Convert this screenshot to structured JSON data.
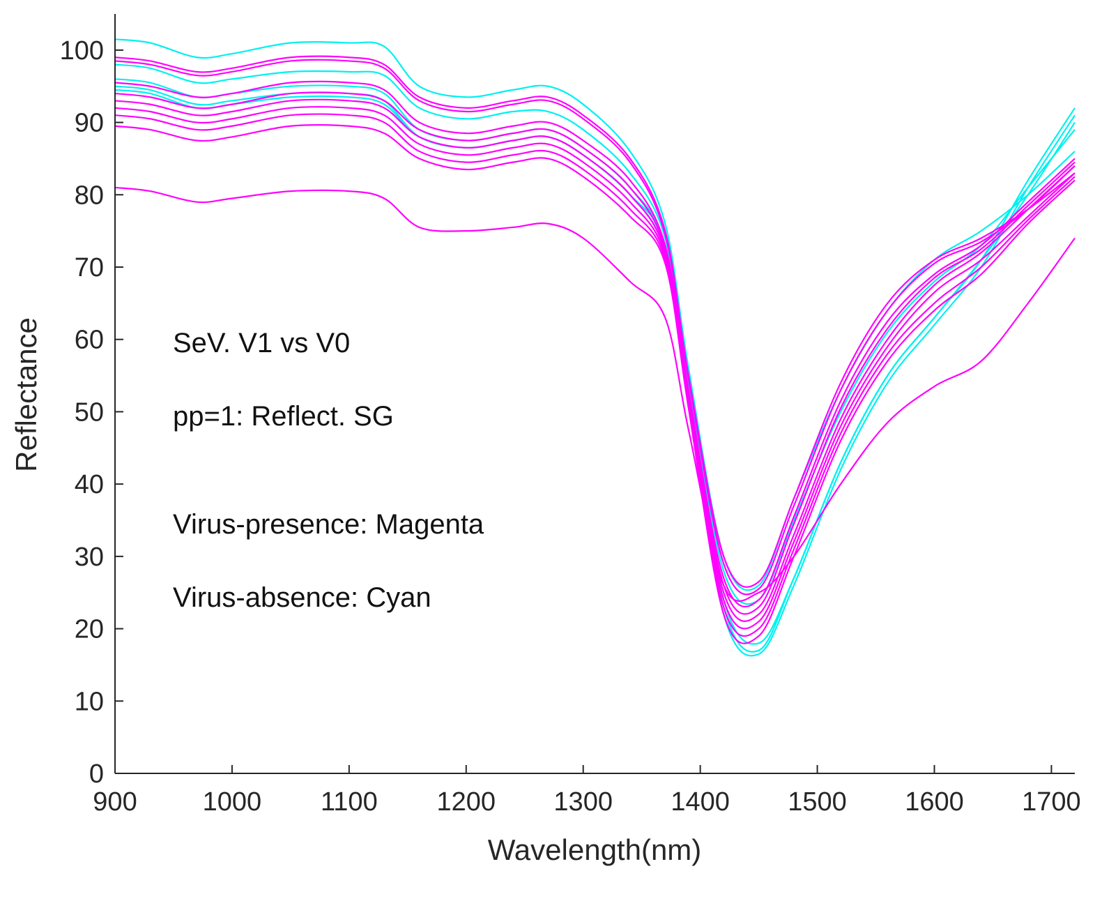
{
  "chart_data": {
    "type": "line",
    "title": "",
    "xlabel": "Wavelength(nm)",
    "ylabel": "Reflectance",
    "xlim": [
      900,
      1720
    ],
    "ylim": [
      0,
      105
    ],
    "xticks": [
      900,
      1000,
      1100,
      1200,
      1300,
      1400,
      1500,
      1600,
      1700
    ],
    "yticks": [
      0,
      10,
      20,
      30,
      40,
      50,
      60,
      70,
      80,
      90,
      100
    ],
    "grid": false,
    "colors": {
      "magenta": "#ff00ff",
      "cyan": "#00f0f0",
      "axis": "#262626"
    },
    "annotations": [
      "SeV. V1 vs V0",
      "pp=1: Reflect. SG",
      "Virus-presence: Magenta",
      "Virus-absence:  Cyan"
    ],
    "x": [
      900,
      930,
      970,
      1000,
      1050,
      1100,
      1130,
      1160,
      1200,
      1240,
      1270,
      1300,
      1340,
      1370,
      1390,
      1420,
      1450,
      1480,
      1520,
      1560,
      1600,
      1640,
      1680,
      1720
    ],
    "series": [
      {
        "name": "Virus-absence 1",
        "color": "cyan",
        "values": [
          101.5,
          101,
          99,
          99.5,
          101,
          101,
          100.5,
          95,
          93.5,
          94.5,
          95,
          92.5,
          86,
          76,
          56,
          30,
          26,
          38,
          53,
          64,
          71,
          75,
          80,
          86
        ]
      },
      {
        "name": "Virus-absence 2",
        "color": "cyan",
        "values": [
          98,
          97.5,
          95.5,
          96,
          97,
          97,
          96.5,
          92,
          90.5,
          91.5,
          91.5,
          89,
          83,
          74,
          54,
          28,
          24,
          35,
          50,
          61,
          68,
          73,
          81,
          89
        ]
      },
      {
        "name": "Virus-absence 3",
        "color": "cyan",
        "values": [
          96,
          95.5,
          93.5,
          94,
          95,
          95,
          94,
          89,
          87.5,
          88.5,
          89,
          86.5,
          81,
          73,
          52,
          24,
          18,
          27,
          43,
          55,
          63,
          71,
          80,
          90
        ]
      },
      {
        "name": "Virus-absence 4",
        "color": "cyan",
        "values": [
          95,
          94.5,
          92.5,
          93,
          94,
          94,
          93,
          88,
          86.5,
          87.5,
          88,
          85.5,
          80,
          72,
          51,
          22,
          16.5,
          26,
          42,
          54,
          62,
          70,
          81,
          91
        ]
      },
      {
        "name": "Virus-absence 5",
        "color": "cyan",
        "values": [
          94.5,
          94,
          92,
          92.5,
          93.5,
          93.5,
          92.5,
          88,
          86.5,
          87.5,
          88,
          85.5,
          80,
          73,
          52,
          23,
          17,
          27,
          43,
          55,
          63,
          71,
          82,
          92
        ]
      },
      {
        "name": "Virus-presence 1",
        "color": "magenta",
        "values": [
          99,
          98.5,
          97,
          97.5,
          99,
          99,
          98,
          93.5,
          92,
          93,
          93.5,
          91,
          85,
          75,
          55,
          30,
          26.5,
          38,
          54,
          65,
          71,
          74,
          78,
          83
        ]
      },
      {
        "name": "Virus-presence 2",
        "color": "magenta",
        "values": [
          98.5,
          98,
          96.5,
          97,
          98.5,
          98.5,
          97.5,
          93,
          91.5,
          92.5,
          93,
          90.5,
          84.5,
          74.5,
          54.5,
          29,
          25.5,
          37,
          53,
          64,
          70.5,
          73.5,
          78,
          84
        ]
      },
      {
        "name": "Virus-presence 3",
        "color": "magenta",
        "values": [
          95.5,
          95,
          93.5,
          94,
          95.5,
          95.5,
          94.5,
          90,
          88.5,
          89.5,
          90,
          87.5,
          82,
          73,
          53,
          27,
          24,
          35.5,
          51.5,
          62.5,
          69,
          73,
          79,
          85
        ]
      },
      {
        "name": "Virus-presence 4",
        "color": "magenta",
        "values": [
          94,
          93.5,
          92,
          92.5,
          94,
          94,
          93,
          89,
          87.5,
          88.5,
          89,
          86.5,
          81,
          72.5,
          52.5,
          26,
          23,
          34.5,
          50.5,
          61.5,
          68.5,
          72.5,
          78.5,
          84.5
        ]
      },
      {
        "name": "Virus-presence 5",
        "color": "magenta",
        "values": [
          93,
          92.5,
          91,
          91.5,
          93,
          93,
          92,
          88,
          86.5,
          87.5,
          88,
          85.5,
          80,
          72,
          52,
          25,
          22,
          33,
          49,
          60,
          67.5,
          72,
          78,
          84
        ]
      },
      {
        "name": "Virus-presence 6",
        "color": "magenta",
        "values": [
          92,
          91.5,
          90,
          90.5,
          92,
          92,
          91,
          87,
          85.5,
          86.5,
          87,
          84.5,
          79,
          71.5,
          51.5,
          24,
          21,
          32,
          48,
          59,
          66.5,
          71,
          77,
          83
        ]
      },
      {
        "name": "Virus-presence 7",
        "color": "magenta",
        "values": [
          91,
          90.5,
          89,
          89.5,
          91,
          91,
          90,
          86,
          84.5,
          85.5,
          86,
          83.5,
          78,
          71,
          51,
          23,
          20,
          31,
          47,
          58,
          65,
          70,
          76.5,
          82.5
        ]
      },
      {
        "name": "Virus-presence 8",
        "color": "magenta",
        "values": [
          89.5,
          89,
          87.5,
          88,
          89.5,
          89.5,
          88.5,
          85,
          83.5,
          84.5,
          85,
          82.5,
          77,
          70.5,
          50.5,
          22,
          19,
          30,
          46,
          57,
          64,
          69,
          76,
          82
        ]
      },
      {
        "name": "Virus-presence 9",
        "color": "magenta",
        "values": [
          81,
          80.5,
          79,
          79.5,
          80.5,
          80.5,
          79.5,
          75.5,
          75,
          75.5,
          76,
          74,
          68,
          63,
          47.5,
          26,
          25,
          30,
          40,
          48.5,
          53.5,
          57,
          65,
          74
        ]
      }
    ]
  }
}
